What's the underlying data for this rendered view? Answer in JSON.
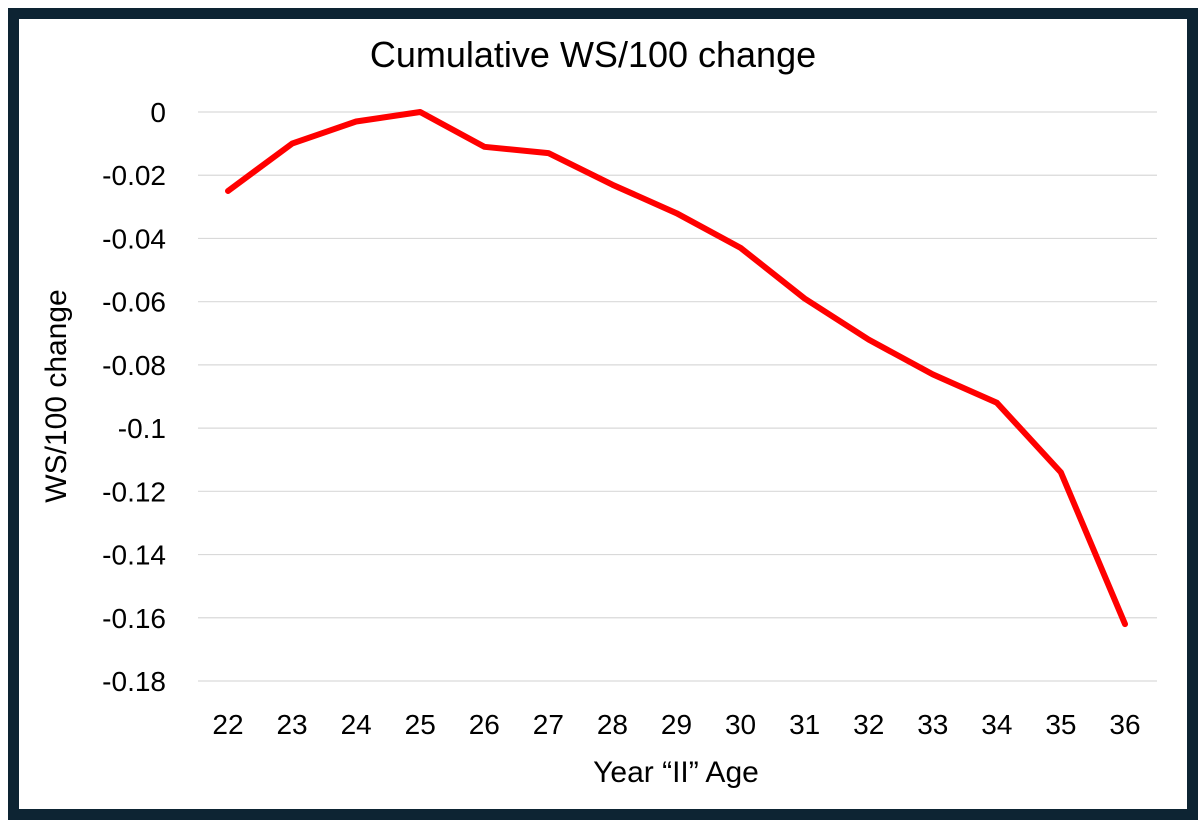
{
  "chart_data": {
    "type": "line",
    "title": "Cumulative WS/100 change",
    "xlabel": "Year “II” Age",
    "ylabel": "WS/100 change",
    "categories": [
      "22",
      "23",
      "24",
      "25",
      "26",
      "27",
      "28",
      "29",
      "30",
      "31",
      "32",
      "33",
      "34",
      "35",
      "36"
    ],
    "series": [
      {
        "values": [
          -0.025,
          -0.01,
          -0.003,
          0.0,
          -0.011,
          -0.013,
          -0.023,
          -0.032,
          -0.043,
          -0.059,
          -0.072,
          -0.083,
          -0.092,
          -0.114,
          -0.162
        ]
      }
    ],
    "ylim": [
      -0.18,
      0
    ],
    "yticks": [
      0,
      -0.02,
      -0.04,
      -0.06,
      -0.08,
      -0.1,
      -0.12,
      -0.14,
      -0.16,
      -0.18
    ],
    "ytick_labels": [
      "0",
      "-0.02",
      "-0.04",
      "-0.06",
      "-0.08",
      "-0.1",
      "-0.12",
      "-0.14",
      "-0.16",
      "-0.18"
    ],
    "grid": true,
    "legend": "none",
    "colors": {
      "line": "#ff0000",
      "frame": "#0d2433",
      "grid": "#d9d9d9"
    }
  }
}
